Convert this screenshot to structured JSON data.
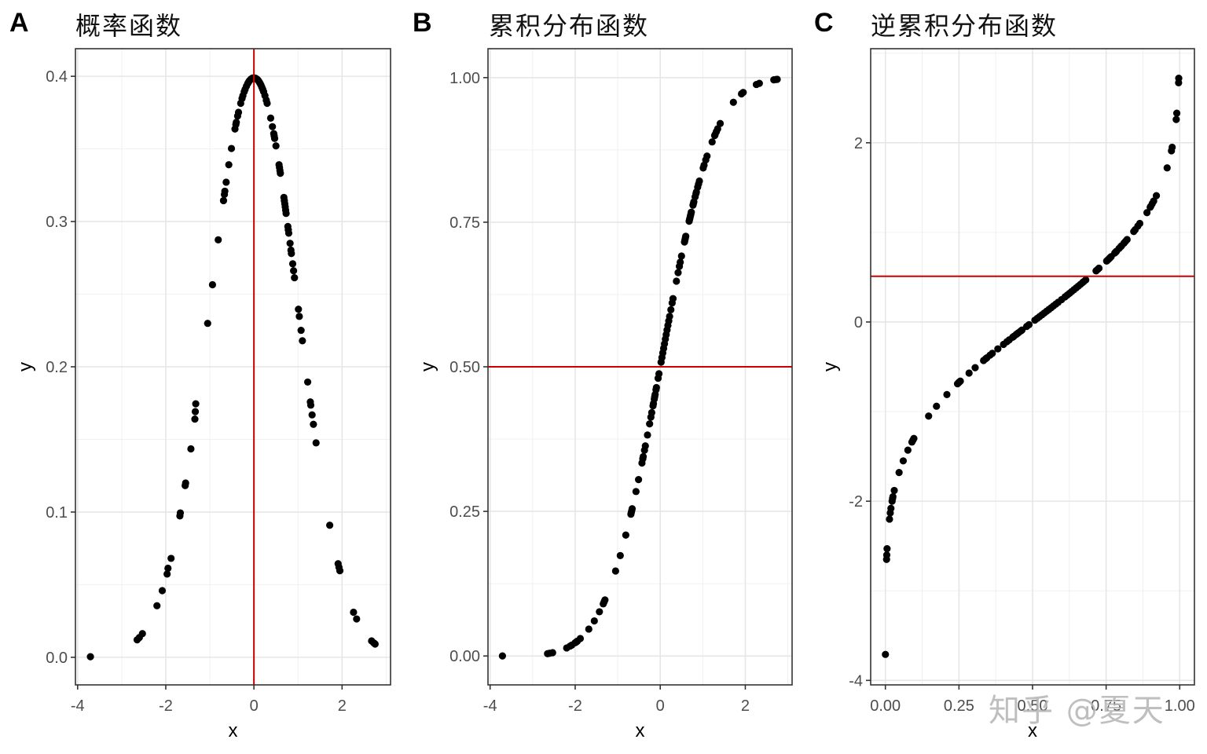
{
  "chart_data": [
    {
      "type": "scatter",
      "tag": "A",
      "title": "概率函数",
      "xlabel": "x",
      "ylabel": "y",
      "xlim": [
        -4.05,
        3.1
      ],
      "ylim": [
        -0.019,
        0.419
      ],
      "xticks": [
        -4,
        -2,
        0,
        2
      ],
      "xtick_labels": [
        "-4",
        "-2",
        "0",
        "2"
      ],
      "yticks": [
        0.0,
        0.1,
        0.2,
        0.3,
        0.4
      ],
      "ytick_labels": [
        "0.0",
        "0.1",
        "0.2",
        "0.3",
        "0.4"
      ],
      "grid": true,
      "reference_line": {
        "orientation": "vertical",
        "value": 0,
        "color": "#cc0000"
      },
      "points": [
        [
          -3.71,
          0.0004
        ],
        [
          -2.65,
          0.012
        ],
        [
          -2.6,
          0.0136
        ],
        [
          -2.53,
          0.0163
        ],
        [
          -2.2,
          0.0355
        ],
        [
          -2.08,
          0.0459
        ],
        [
          -1.97,
          0.0573
        ],
        [
          -1.95,
          0.0613
        ],
        [
          -1.88,
          0.0681
        ],
        [
          -1.68,
          0.0973
        ],
        [
          -1.67,
          0.0994
        ],
        [
          -1.55,
          0.12
        ],
        [
          -1.56,
          0.1182
        ],
        [
          -1.43,
          0.1435
        ],
        [
          -1.34,
          0.164
        ],
        [
          -1.33,
          0.1691
        ],
        [
          -1.32,
          0.1745
        ],
        [
          -1.05,
          0.2299
        ],
        [
          -0.94,
          0.2565
        ],
        [
          -0.81,
          0.2874
        ],
        [
          -0.69,
          0.3144
        ],
        [
          -0.66,
          0.3209
        ],
        [
          -0.67,
          0.3187
        ],
        [
          -0.63,
          0.3271
        ],
        [
          -0.57,
          0.3391
        ],
        [
          -0.51,
          0.3503
        ],
        [
          -0.43,
          0.3637
        ],
        [
          -0.41,
          0.3668
        ],
        [
          -0.4,
          0.3683
        ],
        [
          -0.37,
          0.3726
        ],
        [
          -0.35,
          0.3752
        ],
        [
          -0.3,
          0.3814
        ],
        [
          -0.27,
          0.3847
        ],
        [
          -0.25,
          0.3867
        ],
        [
          -0.22,
          0.3894
        ],
        [
          -0.2,
          0.391
        ],
        [
          -0.17,
          0.3932
        ],
        [
          -0.14,
          0.3951
        ],
        [
          -0.12,
          0.3961
        ],
        [
          -0.1,
          0.397
        ],
        [
          -0.07,
          0.398
        ],
        [
          -0.05,
          0.3984
        ],
        [
          -0.03,
          0.3988
        ],
        [
          0.0,
          0.3989
        ],
        [
          0.02,
          0.3988
        ],
        [
          0.04,
          0.3986
        ],
        [
          0.06,
          0.3982
        ],
        [
          0.08,
          0.3977
        ],
        [
          0.1,
          0.397
        ],
        [
          0.12,
          0.3961
        ],
        [
          0.14,
          0.3951
        ],
        [
          0.16,
          0.3939
        ],
        [
          0.18,
          0.3925
        ],
        [
          0.2,
          0.391
        ],
        [
          0.22,
          0.3894
        ],
        [
          0.25,
          0.3867
        ],
        [
          0.28,
          0.3836
        ],
        [
          0.3,
          0.3814
        ],
        [
          0.38,
          0.3712
        ],
        [
          0.42,
          0.3653
        ],
        [
          0.45,
          0.3605
        ],
        [
          0.46,
          0.3589
        ],
        [
          0.47,
          0.3572
        ],
        [
          0.5,
          0.3521
        ],
        [
          0.57,
          0.3391
        ],
        [
          0.58,
          0.3372
        ],
        [
          0.59,
          0.3352
        ],
        [
          0.6,
          0.3332
        ],
        [
          0.68,
          0.3166
        ],
        [
          0.69,
          0.3144
        ],
        [
          0.7,
          0.3123
        ],
        [
          0.71,
          0.3101
        ],
        [
          0.72,
          0.3079
        ],
        [
          0.73,
          0.3056
        ],
        [
          0.77,
          0.2966
        ],
        [
          0.78,
          0.2943
        ],
        [
          0.79,
          0.292
        ],
        [
          0.82,
          0.285
        ],
        [
          0.84,
          0.2803
        ],
        [
          0.85,
          0.278
        ],
        [
          0.88,
          0.2709
        ],
        [
          0.9,
          0.2661
        ],
        [
          0.92,
          0.2613
        ],
        [
          1.01,
          0.2396
        ],
        [
          1.03,
          0.2347
        ],
        [
          1.07,
          0.2251
        ],
        [
          1.1,
          0.2179
        ],
        [
          1.22,
          0.1895
        ],
        [
          1.28,
          0.1758
        ],
        [
          1.29,
          0.1736
        ],
        [
          1.32,
          0.1669
        ],
        [
          1.35,
          0.1604
        ],
        [
          1.41,
          0.1476
        ],
        [
          1.72,
          0.0909
        ],
        [
          1.91,
          0.0644
        ],
        [
          1.93,
          0.062
        ],
        [
          1.95,
          0.0596
        ],
        [
          2.26,
          0.031
        ],
        [
          2.33,
          0.0264
        ],
        [
          2.67,
          0.0113
        ],
        [
          2.72,
          0.0099
        ],
        [
          2.75,
          0.0091
        ]
      ]
    },
    {
      "type": "scatter",
      "tag": "B",
      "title": "累积分布函数",
      "xlabel": "x",
      "ylabel": "y",
      "xlim": [
        -4.05,
        3.1
      ],
      "ylim": [
        -0.05,
        1.05
      ],
      "xticks": [
        -4,
        -2,
        0,
        2
      ],
      "xtick_labels": [
        "-4",
        "-2",
        "0",
        "2"
      ],
      "yticks": [
        0.0,
        0.25,
        0.5,
        0.75,
        1.0
      ],
      "ytick_labels": [
        "0.00",
        "0.25",
        "0.50",
        "0.75",
        "1.00"
      ],
      "grid": true,
      "reference_line": {
        "orientation": "horizontal",
        "value": 0.5,
        "color": "#cc0000"
      },
      "points": [
        [
          -3.71,
          0.0001
        ],
        [
          -2.65,
          0.004
        ],
        [
          -2.6,
          0.0047
        ],
        [
          -2.53,
          0.0057
        ],
        [
          -2.2,
          0.0139
        ],
        [
          -2.12,
          0.017
        ],
        [
          -2.08,
          0.0188
        ],
        [
          -2.0,
          0.0228
        ],
        [
          -1.97,
          0.0244
        ],
        [
          -1.95,
          0.0256
        ],
        [
          -1.88,
          0.0301
        ],
        [
          -1.68,
          0.0465
        ],
        [
          -1.55,
          0.0606
        ],
        [
          -1.43,
          0.0764
        ],
        [
          -1.34,
          0.0901
        ],
        [
          -1.32,
          0.0934
        ],
        [
          -1.3,
          0.0968
        ],
        [
          -1.05,
          0.1469
        ],
        [
          -0.94,
          0.1736
        ],
        [
          -0.81,
          0.209
        ],
        [
          -0.68,
          0.2483
        ],
        [
          -0.67,
          0.2514
        ],
        [
          -0.66,
          0.2546
        ],
        [
          -0.69,
          0.2451
        ],
        [
          -0.57,
          0.2843
        ],
        [
          -0.51,
          0.305
        ],
        [
          -0.43,
          0.3336
        ],
        [
          -0.41,
          0.3409
        ],
        [
          -0.4,
          0.3446
        ],
        [
          -0.37,
          0.3557
        ],
        [
          -0.35,
          0.3632
        ],
        [
          -0.3,
          0.3821
        ],
        [
          -0.25,
          0.4013
        ],
        [
          -0.22,
          0.4129
        ],
        [
          -0.2,
          0.4207
        ],
        [
          -0.17,
          0.4325
        ],
        [
          -0.16,
          0.4364
        ],
        [
          -0.14,
          0.4443
        ],
        [
          -0.13,
          0.4483
        ],
        [
          -0.12,
          0.4522
        ],
        [
          -0.1,
          0.4602
        ],
        [
          -0.09,
          0.4641
        ],
        [
          -0.05,
          0.4801
        ],
        [
          -0.03,
          0.488
        ],
        [
          0.02,
          0.508
        ],
        [
          0.04,
          0.516
        ],
        [
          0.06,
          0.5239
        ],
        [
          0.08,
          0.5319
        ],
        [
          0.1,
          0.5398
        ],
        [
          0.12,
          0.5478
        ],
        [
          0.14,
          0.5557
        ],
        [
          0.16,
          0.5636
        ],
        [
          0.18,
          0.5714
        ],
        [
          0.2,
          0.5793
        ],
        [
          0.22,
          0.5871
        ],
        [
          0.25,
          0.5987
        ],
        [
          0.28,
          0.6103
        ],
        [
          0.3,
          0.6179
        ],
        [
          0.38,
          0.648
        ],
        [
          0.42,
          0.6628
        ],
        [
          0.45,
          0.6736
        ],
        [
          0.47,
          0.6808
        ],
        [
          0.5,
          0.6915
        ],
        [
          0.57,
          0.7157
        ],
        [
          0.58,
          0.719
        ],
        [
          0.59,
          0.7224
        ],
        [
          0.6,
          0.7257
        ],
        [
          0.68,
          0.7517
        ],
        [
          0.69,
          0.7549
        ],
        [
          0.7,
          0.758
        ],
        [
          0.71,
          0.7611
        ],
        [
          0.72,
          0.7642
        ],
        [
          0.73,
          0.7673
        ],
        [
          0.77,
          0.7794
        ],
        [
          0.78,
          0.7823
        ],
        [
          0.79,
          0.7852
        ],
        [
          0.82,
          0.7939
        ],
        [
          0.84,
          0.7995
        ],
        [
          0.85,
          0.8023
        ],
        [
          0.88,
          0.8106
        ],
        [
          0.9,
          0.8159
        ],
        [
          0.92,
          0.8212
        ],
        [
          1.01,
          0.8438
        ],
        [
          1.03,
          0.8485
        ],
        [
          1.07,
          0.8577
        ],
        [
          1.1,
          0.8643
        ],
        [
          1.22,
          0.8888
        ],
        [
          1.28,
          0.8997
        ],
        [
          1.29,
          0.9015
        ],
        [
          1.32,
          0.9066
        ],
        [
          1.35,
          0.9115
        ],
        [
          1.41,
          0.9207
        ],
        [
          1.72,
          0.9573
        ],
        [
          1.91,
          0.9719
        ],
        [
          1.95,
          0.9744
        ],
        [
          2.26,
          0.9881
        ],
        [
          2.33,
          0.9901
        ],
        [
          2.67,
          0.9962
        ],
        [
          2.72,
          0.9967
        ],
        [
          2.75,
          0.997
        ]
      ]
    },
    {
      "type": "scatter",
      "tag": "C",
      "title": "逆累积分布函数",
      "xlabel": "x",
      "ylabel": "y",
      "xlim": [
        -0.05,
        1.05
      ],
      "ylim": [
        -4.05,
        3.05
      ],
      "xticks": [
        0.0,
        0.25,
        0.5,
        0.75,
        1.0
      ],
      "xtick_labels": [
        "0.00",
        "0.25",
        "0.50",
        "0.75",
        "1.00"
      ],
      "yticks": [
        -4,
        -2,
        0,
        2
      ],
      "ytick_labels": [
        "-4",
        "-2",
        "0",
        "2"
      ],
      "grid": true,
      "reference_line": {
        "orientation": "horizontal",
        "value": 0.51,
        "color": "#cc0000"
      },
      "points": [
        [
          0.0001,
          -3.71
        ],
        [
          0.004,
          -2.65
        ],
        [
          0.0047,
          -2.6
        ],
        [
          0.0057,
          -2.53
        ],
        [
          0.0139,
          -2.2
        ],
        [
          0.0165,
          -2.13
        ],
        [
          0.0188,
          -2.08
        ],
        [
          0.0228,
          -2.0
        ],
        [
          0.0244,
          -1.97
        ],
        [
          0.0256,
          -1.95
        ],
        [
          0.0301,
          -1.88
        ],
        [
          0.0465,
          -1.68
        ],
        [
          0.0606,
          -1.55
        ],
        [
          0.0764,
          -1.43
        ],
        [
          0.0901,
          -1.34
        ],
        [
          0.0934,
          -1.32
        ],
        [
          0.0968,
          -1.3
        ],
        [
          0.1469,
          -1.05
        ],
        [
          0.1736,
          -0.94
        ],
        [
          0.209,
          -0.81
        ],
        [
          0.2451,
          -0.69
        ],
        [
          0.2483,
          -0.68
        ],
        [
          0.2514,
          -0.67
        ],
        [
          0.2546,
          -0.66
        ],
        [
          0.2843,
          -0.57
        ],
        [
          0.305,
          -0.51
        ],
        [
          0.3336,
          -0.43
        ],
        [
          0.3409,
          -0.41
        ],
        [
          0.3446,
          -0.4
        ],
        [
          0.3557,
          -0.37
        ],
        [
          0.3632,
          -0.35
        ],
        [
          0.3821,
          -0.3
        ],
        [
          0.4013,
          -0.25
        ],
        [
          0.4129,
          -0.22
        ],
        [
          0.4207,
          -0.2
        ],
        [
          0.4325,
          -0.17
        ],
        [
          0.4364,
          -0.16
        ],
        [
          0.4443,
          -0.14
        ],
        [
          0.4483,
          -0.13
        ],
        [
          0.4522,
          -0.12
        ],
        [
          0.4602,
          -0.1
        ],
        [
          0.4641,
          -0.09
        ],
        [
          0.4801,
          -0.05
        ],
        [
          0.488,
          -0.03
        ],
        [
          0.508,
          0.02
        ],
        [
          0.516,
          0.04
        ],
        [
          0.5239,
          0.06
        ],
        [
          0.5319,
          0.08
        ],
        [
          0.5398,
          0.1
        ],
        [
          0.5478,
          0.12
        ],
        [
          0.5557,
          0.14
        ],
        [
          0.5636,
          0.16
        ],
        [
          0.5714,
          0.18
        ],
        [
          0.5793,
          0.2
        ],
        [
          0.5871,
          0.22
        ],
        [
          0.5987,
          0.25
        ],
        [
          0.6103,
          0.28
        ],
        [
          0.6179,
          0.3
        ],
        [
          0.6255,
          0.32
        ],
        [
          0.6331,
          0.34
        ],
        [
          0.6406,
          0.36
        ],
        [
          0.648,
          0.38
        ],
        [
          0.6554,
          0.4
        ],
        [
          0.6628,
          0.42
        ],
        [
          0.67,
          0.44
        ],
        [
          0.6736,
          0.45
        ],
        [
          0.6808,
          0.47
        ],
        [
          0.7157,
          0.57
        ],
        [
          0.719,
          0.58
        ],
        [
          0.7224,
          0.59
        ],
        [
          0.7257,
          0.6
        ],
        [
          0.7517,
          0.68
        ],
        [
          0.7549,
          0.69
        ],
        [
          0.758,
          0.7
        ],
        [
          0.7611,
          0.71
        ],
        [
          0.7642,
          0.72
        ],
        [
          0.7673,
          0.73
        ],
        [
          0.7794,
          0.77
        ],
        [
          0.7823,
          0.78
        ],
        [
          0.7852,
          0.79
        ],
        [
          0.7939,
          0.82
        ],
        [
          0.7995,
          0.84
        ],
        [
          0.8023,
          0.85
        ],
        [
          0.8106,
          0.88
        ],
        [
          0.8159,
          0.9
        ],
        [
          0.8212,
          0.92
        ],
        [
          0.8438,
          1.01
        ],
        [
          0.8485,
          1.03
        ],
        [
          0.8577,
          1.07
        ],
        [
          0.8643,
          1.1
        ],
        [
          0.8888,
          1.22
        ],
        [
          0.8997,
          1.28
        ],
        [
          0.9015,
          1.29
        ],
        [
          0.9066,
          1.32
        ],
        [
          0.9115,
          1.35
        ],
        [
          0.9207,
          1.41
        ],
        [
          0.9573,
          1.72
        ],
        [
          0.9719,
          1.91
        ],
        [
          0.9744,
          1.95
        ],
        [
          0.9881,
          2.26
        ],
        [
          0.9901,
          2.33
        ],
        [
          0.9962,
          2.67
        ],
        [
          0.9967,
          2.72
        ]
      ]
    }
  ],
  "watermark": "知乎 @夏天"
}
